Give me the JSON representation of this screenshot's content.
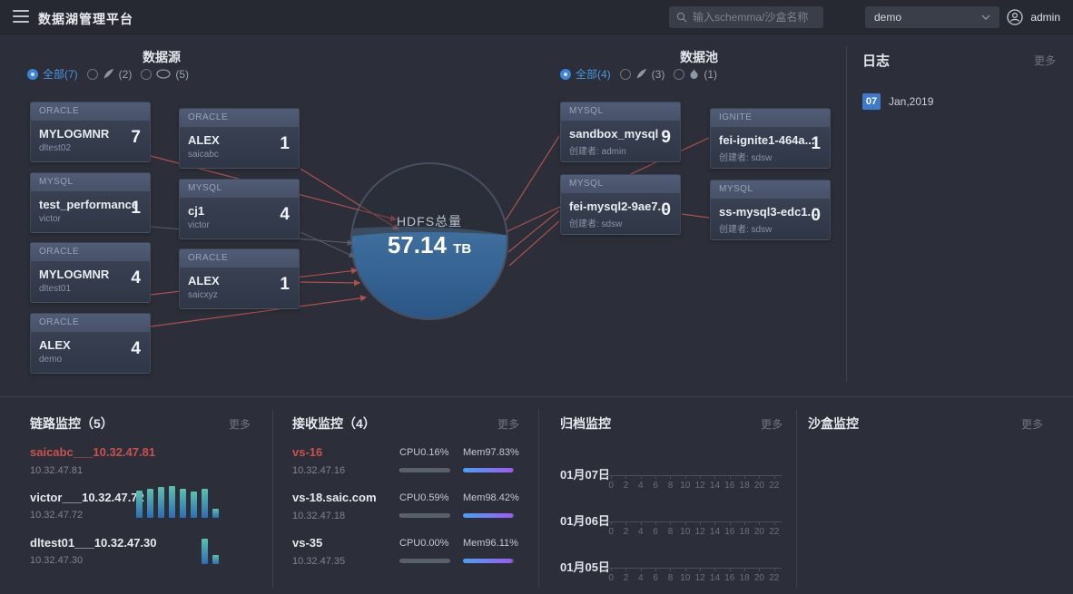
{
  "topbar": {
    "title": "数据湖管理平台",
    "search_placeholder": "输入schemma/沙盒名称",
    "env_selected": "demo",
    "user": "admin"
  },
  "datasource": {
    "title": "数据源",
    "filters": [
      {
        "label": "全部(7)",
        "selected": true,
        "icon": ""
      },
      {
        "label": "(2)",
        "selected": false,
        "icon": "quill-icon"
      },
      {
        "label": "(5)",
        "selected": false,
        "icon": "oval-icon"
      }
    ],
    "cards": [
      {
        "type": "ORACLE",
        "name": "MYLOGMNR",
        "sub": "dltest02",
        "count": "7"
      },
      {
        "type": "ORACLE",
        "name": "ALEX",
        "sub": "saicabc",
        "count": "1"
      },
      {
        "type": "MYSQL",
        "name": "test_performance",
        "sub": "victor",
        "count": "1"
      },
      {
        "type": "MYSQL",
        "name": "cj1",
        "sub": "victor",
        "count": "4"
      },
      {
        "type": "ORACLE",
        "name": "MYLOGMNR",
        "sub": "dltest01",
        "count": "4"
      },
      {
        "type": "ORACLE",
        "name": "ALEX",
        "sub": "saicxyz",
        "count": "1"
      },
      {
        "type": "ORACLE",
        "name": "ALEX",
        "sub": "demo",
        "count": "4"
      }
    ]
  },
  "hdfs": {
    "label": "HDFS总量",
    "value": "57.14",
    "unit": "TB"
  },
  "datapool": {
    "title": "数据池",
    "filters": [
      {
        "label": "全部(4)",
        "selected": true,
        "icon": ""
      },
      {
        "label": "(3)",
        "selected": false,
        "icon": "quill-icon"
      },
      {
        "label": "(1)",
        "selected": false,
        "icon": "flame-icon"
      }
    ],
    "cards": [
      {
        "type": "MYSQL",
        "name": "sandbox_mysql",
        "sub": "创建者: admin",
        "count": "9"
      },
      {
        "type": "IGNITE",
        "name": "fei-ignite1-464a...",
        "sub": "创建者: sdsw",
        "count": "1"
      },
      {
        "type": "MYSQL",
        "name": "fei-mysql2-9ae7...",
        "sub": "创建者: sdsw",
        "count": "0"
      },
      {
        "type": "MYSQL",
        "name": "ss-mysql3-edc1...",
        "sub": "创建者: sdsw",
        "count": "0"
      }
    ]
  },
  "log": {
    "title": "日志",
    "more": "更多",
    "entries": [
      {
        "day": "07",
        "date": "Jan,2019"
      }
    ]
  },
  "link_monitor": {
    "title": "链路监控（5）",
    "more": "更多",
    "items": [
      {
        "name": "saicabc___10.32.47.81",
        "ip": "10.32.47.81",
        "alert": true,
        "bars": []
      },
      {
        "name": "victor___10.32.47.72",
        "ip": "10.32.47.72",
        "alert": false,
        "bars": [
          30,
          32,
          34,
          35,
          32,
          29,
          32,
          10
        ]
      },
      {
        "name": "dltest01___10.32.47.30",
        "ip": "10.32.47.30",
        "alert": false,
        "bars": [
          0,
          0,
          0,
          0,
          0,
          0,
          28,
          10
        ]
      }
    ]
  },
  "receive_monitor": {
    "title": "接收监控（4）",
    "more": "更多",
    "items": [
      {
        "name": "vs-16",
        "ip": "10.32.47.16",
        "alert": true,
        "cpu_label": "CPU0.16%",
        "cpu_pct": 0.16,
        "mem_label": "Mem97.83%",
        "mem_pct": 97.83
      },
      {
        "name": "vs-18.saic.com",
        "ip": "10.32.47.18",
        "alert": false,
        "cpu_label": "CPU0.59%",
        "cpu_pct": 0.59,
        "mem_label": "Mem98.42%",
        "mem_pct": 98.42
      },
      {
        "name": "vs-35",
        "ip": "10.32.47.35",
        "alert": false,
        "cpu_label": "CPU0.00%",
        "cpu_pct": 0.0,
        "mem_label": "Mem96.11%",
        "mem_pct": 96.11
      }
    ]
  },
  "archive_monitor": {
    "title": "归档监控",
    "more": "更多",
    "days": [
      "01月07日",
      "01月06日",
      "01月05日"
    ],
    "hours": [
      "0",
      "2",
      "4",
      "6",
      "8",
      "10",
      "12",
      "14",
      "16",
      "18",
      "20",
      "22"
    ]
  },
  "sandbox_monitor": {
    "title": "沙盒监控",
    "more": "更多"
  },
  "colors": {
    "accent": "#3d84d6",
    "alert_red": "#c8524e",
    "line_red": "#b85450",
    "bar_gradient": [
      "#5cc0ae",
      "#2e6db4"
    ],
    "mem_gradient": [
      "#4aa0f0",
      "#9d5cf2"
    ],
    "log_badge": "#3f79c9"
  }
}
